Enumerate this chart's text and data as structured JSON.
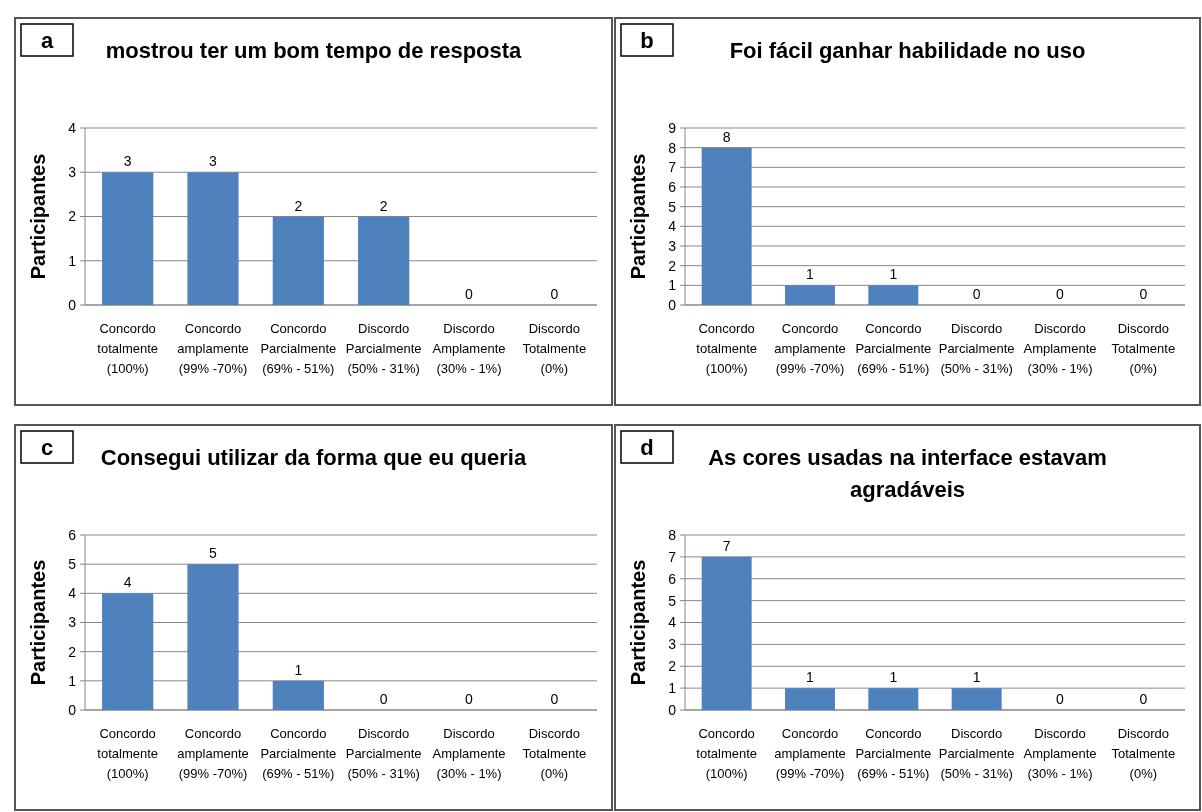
{
  "chart_data": [
    {
      "type": "bar",
      "title": "mostrou ter um bom tempo de resposta",
      "ylabel": "Participantes",
      "annotations": [
        "a"
      ],
      "categories": [
        "Concordo\ntotalmente\n(100%)",
        "Concordo\namplamente\n(99% -70%)",
        "Concordo\nParcialmente\n(69% - 51%)",
        "Discordo\nParcialmente\n(50% - 31%)",
        "Discordo\nAmplamente\n(30% - 1%)",
        "Discordo\nTotalmente\n(0%)"
      ],
      "values": [
        3,
        3,
        2,
        2,
        0,
        0
      ],
      "color": "#4f81bd",
      "ylim": [
        0,
        4
      ],
      "yticks": [
        0,
        1,
        2,
        3,
        4
      ],
      "grid": "y",
      "data_labels": true
    },
    {
      "type": "bar",
      "title": "Foi fácil ganhar habilidade no uso",
      "ylabel": "Participantes",
      "annotations": [
        "b"
      ],
      "categories": [
        "Concordo\ntotalmente\n(100%)",
        "Concordo\namplamente\n(99% -70%)",
        "Concordo\nParcialmente\n(69% - 51%)",
        "Discordo\nParcialmente\n(50% - 31%)",
        "Discordo\nAmplamente\n(30% - 1%)",
        "Discordo\nTotalmente\n(0%)"
      ],
      "values": [
        8,
        1,
        1,
        0,
        0,
        0
      ],
      "color": "#4f81bd",
      "ylim": [
        0,
        9
      ],
      "yticks": [
        0,
        1,
        2,
        3,
        4,
        5,
        6,
        7,
        8,
        9
      ],
      "grid": "y",
      "data_labels": true
    },
    {
      "type": "bar",
      "title": "Consegui utilizar da forma que eu queria",
      "ylabel": "Participantes",
      "annotations": [
        "c"
      ],
      "categories": [
        "Concordo\ntotalmente\n(100%)",
        "Concordo\namplamente\n(99% -70%)",
        "Concordo\nParcialmente\n(69% - 51%)",
        "Discordo\nParcialmente\n(50% - 31%)",
        "Discordo\nAmplamente\n(30% - 1%)",
        "Discordo\nTotalmente\n(0%)"
      ],
      "values": [
        4,
        5,
        1,
        0,
        0,
        0
      ],
      "color": "#4f81bd",
      "ylim": [
        0,
        6
      ],
      "yticks": [
        0,
        1,
        2,
        3,
        4,
        5,
        6
      ],
      "grid": "y",
      "data_labels": true
    },
    {
      "type": "bar",
      "title": "As cores usadas na interface estavam agradáveis",
      "ylabel": "Participantes",
      "annotations": [
        "d"
      ],
      "categories": [
        "Concordo\ntotalmente\n(100%)",
        "Concordo\namplamente\n(99% -70%)",
        "Concordo\nParcialmente\n(69% - 51%)",
        "Discordo\nParcialmente\n(50% - 31%)",
        "Discordo\nAmplamente\n(30% - 1%)",
        "Discordo\nTotalmente\n(0%)"
      ],
      "values": [
        7,
        1,
        1,
        1,
        0,
        0
      ],
      "color": "#4f81bd",
      "ylim": [
        0,
        8
      ],
      "yticks": [
        0,
        1,
        2,
        3,
        4,
        5,
        6,
        7,
        8
      ],
      "grid": "y",
      "data_labels": true
    }
  ]
}
